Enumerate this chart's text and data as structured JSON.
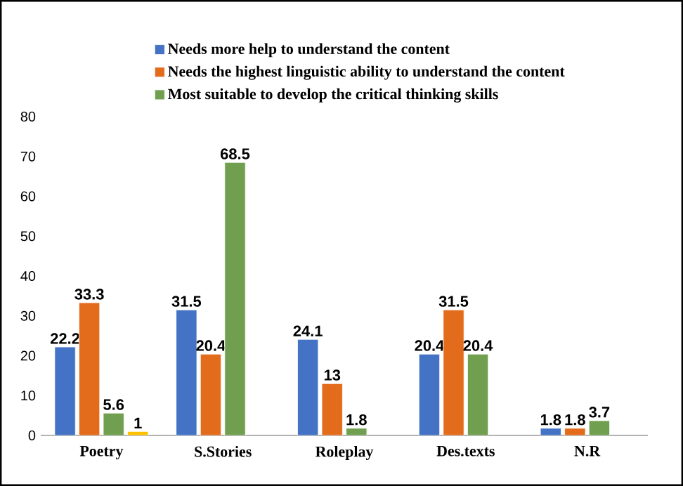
{
  "chart_data": {
    "type": "bar",
    "categories": [
      "Poetry",
      "S.Stories",
      "Roleplay",
      "Des.texts",
      "N.R"
    ],
    "series": [
      {
        "name": "Needs more help to understand the content",
        "color": "#4472c4",
        "values": [
          22.2,
          31.5,
          24.1,
          20.4,
          1.8
        ]
      },
      {
        "name": "Needs the highest linguistic ability to understand the content",
        "color": "#e36c1c",
        "values": [
          33.3,
          20.4,
          13,
          31.5,
          1.8
        ]
      },
      {
        "name": "Most suitable to develop the critical thinking skills",
        "color": "#70a04f",
        "values": [
          5.6,
          68.5,
          1.8,
          20.4,
          3.7
        ]
      },
      {
        "color": "#ffc000",
        "values": [
          1,
          null,
          null,
          null,
          null
        ]
      }
    ],
    "ylim": [
      0,
      80
    ],
    "yticks": [
      0,
      10,
      20,
      30,
      40,
      50,
      60,
      70,
      80
    ],
    "data_labels": true,
    "legend": "top",
    "grid": false
  }
}
